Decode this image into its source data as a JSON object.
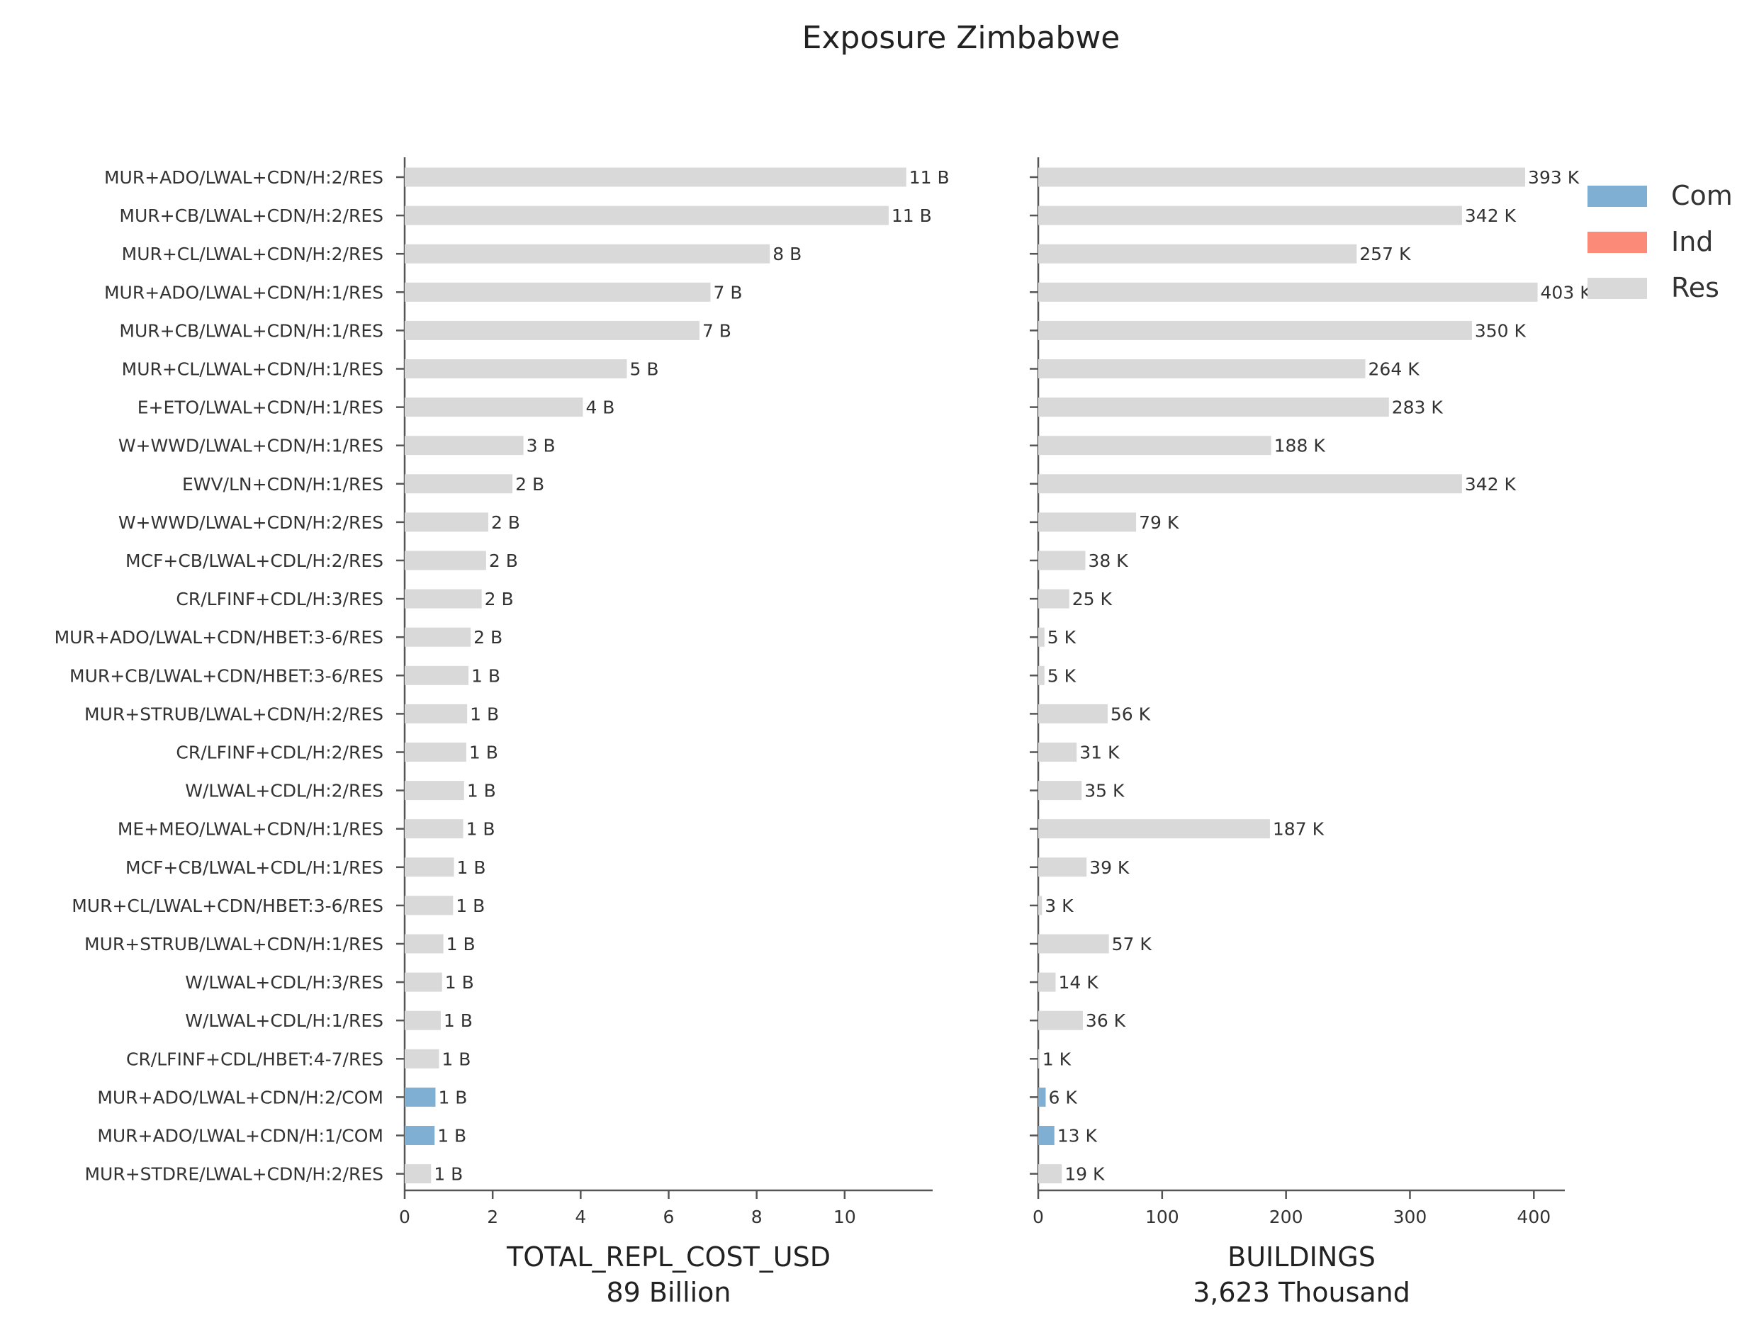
{
  "chart_data": {
    "type": "bar",
    "orientation": "horizontal",
    "title": "Exposure Zimbabwe",
    "categories": [
      "MUR+ADO/LWAL+CDN/H:2/RES",
      "MUR+CB/LWAL+CDN/H:2/RES",
      "MUR+CL/LWAL+CDN/H:2/RES",
      "MUR+ADO/LWAL+CDN/H:1/RES",
      "MUR+CB/LWAL+CDN/H:1/RES",
      "MUR+CL/LWAL+CDN/H:1/RES",
      "E+ETO/LWAL+CDN/H:1/RES",
      "W+WWD/LWAL+CDN/H:1/RES",
      "EWV/LN+CDN/H:1/RES",
      "W+WWD/LWAL+CDN/H:2/RES",
      "MCF+CB/LWAL+CDL/H:2/RES",
      "CR/LFINF+CDL/H:3/RES",
      "MUR+ADO/LWAL+CDN/HBET:3-6/RES",
      "MUR+CB/LWAL+CDN/HBET:3-6/RES",
      "MUR+STRUB/LWAL+CDN/H:2/RES",
      "CR/LFINF+CDL/H:2/RES",
      "W/LWAL+CDL/H:2/RES",
      "ME+MEO/LWAL+CDN/H:1/RES",
      "MCF+CB/LWAL+CDL/H:1/RES",
      "MUR+CL/LWAL+CDN/HBET:3-6/RES",
      "MUR+STRUB/LWAL+CDN/H:1/RES",
      "W/LWAL+CDL/H:3/RES",
      "W/LWAL+CDL/H:1/RES",
      "CR/LFINF+CDL/HBET:4-7/RES",
      "MUR+ADO/LWAL+CDN/H:2/COM",
      "MUR+ADO/LWAL+CDN/H:1/COM",
      "MUR+STDRE/LWAL+CDN/H:2/RES"
    ],
    "occupancy": [
      "Res",
      "Res",
      "Res",
      "Res",
      "Res",
      "Res",
      "Res",
      "Res",
      "Res",
      "Res",
      "Res",
      "Res",
      "Res",
      "Res",
      "Res",
      "Res",
      "Res",
      "Res",
      "Res",
      "Res",
      "Res",
      "Res",
      "Res",
      "Res",
      "Com",
      "Com",
      "Res"
    ],
    "panels": [
      {
        "name": "cost",
        "xlabel": "TOTAL_REPL_COST_USD",
        "subtitle": "89 Billion",
        "xlim": [
          0,
          12
        ],
        "xticks": [
          0,
          2,
          4,
          6,
          8,
          10
        ],
        "xtick_labels": [
          "0",
          "2",
          "4",
          "6",
          "8",
          "10"
        ],
        "values": [
          11.4,
          11.0,
          8.3,
          6.95,
          6.7,
          5.05,
          4.05,
          2.7,
          2.45,
          1.9,
          1.85,
          1.75,
          1.5,
          1.45,
          1.42,
          1.4,
          1.35,
          1.33,
          1.12,
          1.1,
          0.88,
          0.85,
          0.82,
          0.78,
          0.7,
          0.68,
          0.6
        ],
        "value_labels": [
          "11 B",
          "11 B",
          "8 B",
          "7 B",
          "7 B",
          "5 B",
          "4 B",
          "3 B",
          "2 B",
          "2 B",
          "2 B",
          "2 B",
          "2 B",
          "1 B",
          "1 B",
          "1 B",
          "1 B",
          "1 B",
          "1 B",
          "1 B",
          "1 B",
          "1 B",
          "1 B",
          "1 B",
          "1 B",
          "1 B",
          "1 B"
        ]
      },
      {
        "name": "buildings",
        "xlabel": "BUILDINGS",
        "subtitle": "3,623 Thousand",
        "xlim": [
          0,
          425
        ],
        "xticks": [
          0,
          100,
          200,
          300,
          400
        ],
        "xtick_labels": [
          "0",
          "100",
          "200",
          "300",
          "400"
        ],
        "values": [
          393,
          342,
          257,
          403,
          350,
          264,
          283,
          188,
          342,
          79,
          38,
          25,
          5,
          5,
          56,
          31,
          35,
          187,
          39,
          3,
          57,
          14,
          36,
          1,
          6,
          13,
          19
        ],
        "value_labels": [
          "393 K",
          "342 K",
          "257 K",
          "403 K",
          "350 K",
          "264 K",
          "283 K",
          "188 K",
          "342 K",
          "79 K",
          "38 K",
          "25 K",
          "5 K",
          "5 K",
          "56 K",
          "31 K",
          "35 K",
          "187 K",
          "39 K",
          "3 K",
          "57 K",
          "14 K",
          "36 K",
          "1 K",
          "6 K",
          "13 K",
          "19 K"
        ]
      }
    ],
    "legend": {
      "placement": "top-right",
      "entries": [
        "Com",
        "Ind",
        "Res"
      ]
    },
    "colors": {
      "Com": "#7fb0d4",
      "Ind": "#fb8a78",
      "Res": "#d9d9d9"
    },
    "grid": false
  }
}
